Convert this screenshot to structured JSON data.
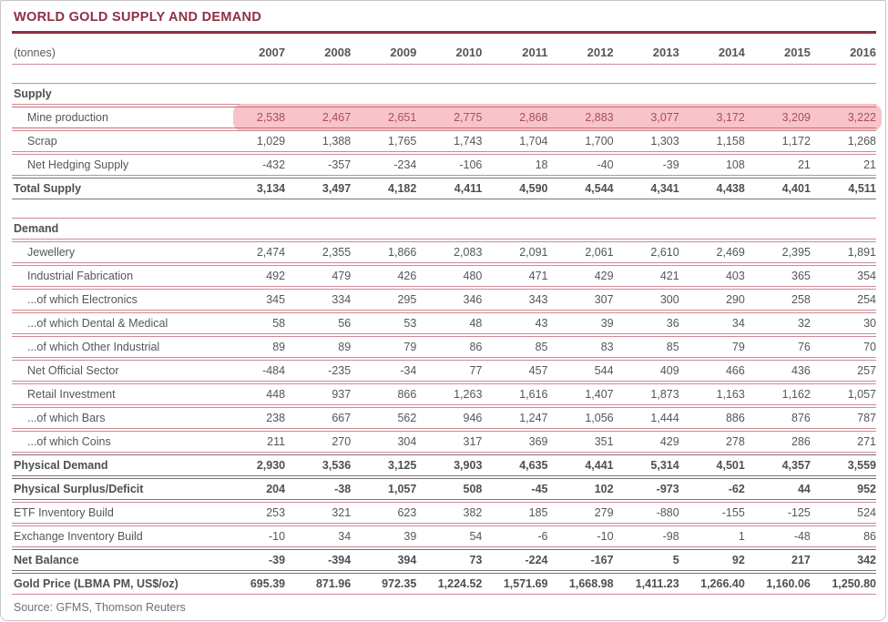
{
  "title": "WORLD GOLD SUPPLY AND DEMAND",
  "header": {
    "unit_label": "(tonnes)",
    "years": [
      "2007",
      "2008",
      "2009",
      "2010",
      "2011",
      "2012",
      "2013",
      "2014",
      "2015",
      "2016"
    ]
  },
  "source_note": "Source: GFMS, Thomson Reuters",
  "colors": {
    "accent_maroon": "#8e2c3e",
    "title_text": "#8d3145",
    "row_line_pink": "#cf8a94",
    "bold_row_line": "#7d7275",
    "highlight_bg": "#f8c4c9",
    "highlight_text": "#a5505b",
    "body_text": "#55565a"
  },
  "chart_data": {
    "type": "table",
    "title": "WORLD GOLD SUPPLY AND DEMAND",
    "unit": "tonnes",
    "columns": [
      "2007",
      "2008",
      "2009",
      "2010",
      "2011",
      "2012",
      "2013",
      "2014",
      "2015",
      "2016"
    ],
    "sections": [
      {
        "header": "Supply",
        "rows": [
          {
            "label": "Mine production",
            "indent": true,
            "highlight": true,
            "values": [
              "2,538",
              "2,467",
              "2,651",
              "2,775",
              "2,868",
              "2,883",
              "3,077",
              "3,172",
              "3,209",
              "3,222"
            ]
          },
          {
            "label": "Scrap",
            "indent": true,
            "values": [
              "1,029",
              "1,388",
              "1,765",
              "1,743",
              "1,704",
              "1,700",
              "1,303",
              "1,158",
              "1,172",
              "1,268"
            ]
          },
          {
            "label": "Net Hedging Supply",
            "indent": true,
            "values": [
              "-432",
              "-357",
              "-234",
              "-106",
              "18",
              "-40",
              "-39",
              "108",
              "21",
              "21"
            ]
          },
          {
            "label": "Total Supply",
            "bold": true,
            "values": [
              "3,134",
              "3,497",
              "4,182",
              "4,411",
              "4,590",
              "4,544",
              "4,341",
              "4,438",
              "4,401",
              "4,511"
            ]
          }
        ]
      },
      {
        "header": "Demand",
        "rows": [
          {
            "label": "Jewellery",
            "indent": true,
            "values": [
              "2,474",
              "2,355",
              "1,866",
              "2,083",
              "2,091",
              "2,061",
              "2,610",
              "2,469",
              "2,395",
              "1,891"
            ]
          },
          {
            "label": "Industrial Fabrication",
            "indent": true,
            "values": [
              "492",
              "479",
              "426",
              "480",
              "471",
              "429",
              "421",
              "403",
              "365",
              "354"
            ]
          },
          {
            "label": "...of which Electronics",
            "indent": true,
            "values": [
              "345",
              "334",
              "295",
              "346",
              "343",
              "307",
              "300",
              "290",
              "258",
              "254"
            ]
          },
          {
            "label": "...of which Dental & Medical",
            "indent": true,
            "values": [
              "58",
              "56",
              "53",
              "48",
              "43",
              "39",
              "36",
              "34",
              "32",
              "30"
            ]
          },
          {
            "label": "...of which Other Industrial",
            "indent": true,
            "values": [
              "89",
              "89",
              "79",
              "86",
              "85",
              "83",
              "85",
              "79",
              "76",
              "70"
            ]
          },
          {
            "label": "Net Official Sector",
            "indent": true,
            "values": [
              "-484",
              "-235",
              "-34",
              "77",
              "457",
              "544",
              "409",
              "466",
              "436",
              "257"
            ]
          },
          {
            "label": "Retail Investment",
            "indent": true,
            "values": [
              "448",
              "937",
              "866",
              "1,263",
              "1,616",
              "1,407",
              "1,873",
              "1,163",
              "1,162",
              "1,057"
            ]
          },
          {
            "label": "...of which Bars",
            "indent": true,
            "values": [
              "238",
              "667",
              "562",
              "946",
              "1,247",
              "1,056",
              "1,444",
              "886",
              "876",
              "787"
            ]
          },
          {
            "label": "...of which Coins",
            "indent": true,
            "values": [
              "211",
              "270",
              "304",
              "317",
              "369",
              "351",
              "429",
              "278",
              "286",
              "271"
            ]
          },
          {
            "label": "Physical Demand",
            "bold": true,
            "values": [
              "2,930",
              "3,536",
              "3,125",
              "3,903",
              "4,635",
              "4,441",
              "5,314",
              "4,501",
              "4,357",
              "3,559"
            ]
          },
          {
            "label": "Physical Surplus/Deficit",
            "bold": true,
            "values": [
              "204",
              "-38",
              "1,057",
              "508",
              "-45",
              "102",
              "-973",
              "-62",
              "44",
              "952"
            ]
          },
          {
            "label": "ETF Inventory Build",
            "values": [
              "253",
              "321",
              "623",
              "382",
              "185",
              "279",
              "-880",
              "-155",
              "-125",
              "524"
            ]
          },
          {
            "label": "Exchange Inventory Build",
            "values": [
              "-10",
              "34",
              "39",
              "54",
              "-6",
              "-10",
              "-98",
              "1",
              "-48",
              "86"
            ]
          },
          {
            "label": "Net Balance",
            "bold": true,
            "values": [
              "-39",
              "-394",
              "394",
              "73",
              "-224",
              "-167",
              "5",
              "92",
              "217",
              "342"
            ]
          },
          {
            "label": "Gold Price (LBMA PM, US$/oz)",
            "bold": true,
            "pinkbottom": true,
            "values": [
              "695.39",
              "871.96",
              "972.35",
              "1,224.52",
              "1,571.69",
              "1,668.98",
              "1,411.23",
              "1,266.40",
              "1,160.06",
              "1,250.80"
            ]
          }
        ]
      }
    ]
  }
}
